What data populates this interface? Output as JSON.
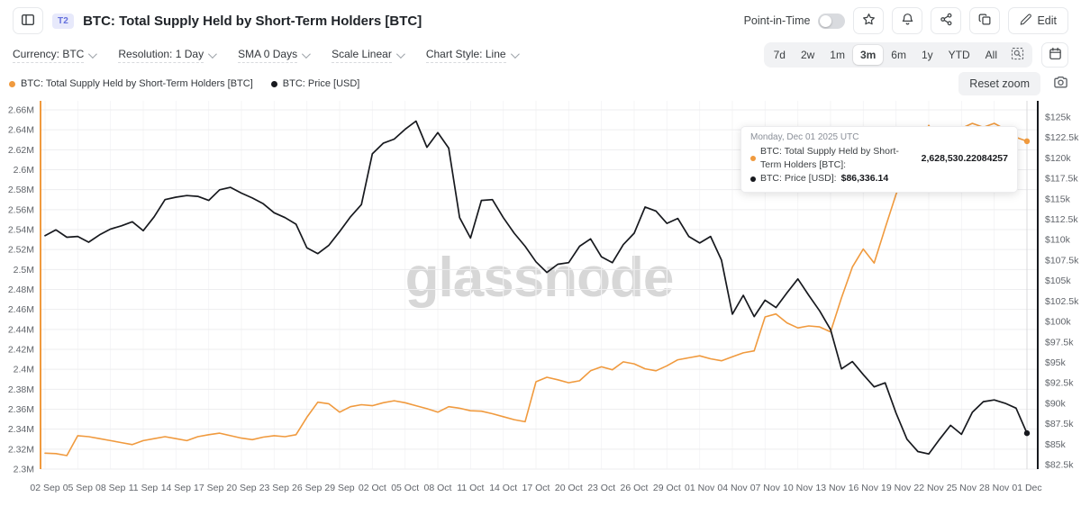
{
  "header": {
    "badge": "T2",
    "title": "BTC: Total Supply Held by Short-Term Holders [BTC]",
    "point_in_time_label": "Point-in-Time",
    "edit_label": "Edit"
  },
  "toolbar": {
    "controls": [
      {
        "label": "Currency: BTC"
      },
      {
        "label": "Resolution: 1 Day"
      },
      {
        "label": "SMA 0 Days"
      },
      {
        "label": "Scale Linear"
      },
      {
        "label": "Chart Style: Line"
      }
    ],
    "ranges": [
      "7d",
      "2w",
      "1m",
      "3m",
      "6m",
      "1y",
      "YTD",
      "All"
    ],
    "selected_range": "3m"
  },
  "legend": {
    "items": [
      {
        "label": "BTC: Total Supply Held by Short-Term Holders [BTC]",
        "color": "#f09a3e"
      },
      {
        "label": "BTC: Price [USD]",
        "color": "#17191e"
      }
    ],
    "reset_zoom_label": "Reset zoom"
  },
  "tooltip": {
    "date": "Monday, Dec 01 2025 UTC",
    "rows": [
      {
        "label": "BTC: Total Supply Held by Short-Term Holders [BTC]:",
        "value": "2,628,530.22084257",
        "color": "#f09a3e"
      },
      {
        "label": "BTC: Price [USD]:",
        "value": "$86,336.14",
        "color": "#17191e"
      }
    ]
  },
  "watermark": "glassnode",
  "chart_data": {
    "type": "line",
    "title": "BTC: Total Supply Held by Short-Term Holders [BTC]",
    "x_start_date": "2025-09-02",
    "x_end_date": "2025-12-01",
    "x_tick_labels": [
      "02 Sep",
      "05 Sep",
      "08 Sep",
      "11 Sep",
      "14 Sep",
      "17 Sep",
      "20 Sep",
      "23 Sep",
      "26 Sep",
      "29 Sep",
      "02 Oct",
      "05 Oct",
      "08 Oct",
      "11 Oct",
      "14 Oct",
      "17 Oct",
      "20 Oct",
      "23 Oct",
      "26 Oct",
      "29 Oct",
      "01 Nov",
      "04 Nov",
      "07 Nov",
      "10 Nov",
      "13 Nov",
      "16 Nov",
      "19 Nov",
      "22 Nov",
      "25 Nov",
      "28 Nov",
      "01 Dec"
    ],
    "y_left": {
      "min": 2.3,
      "max": 2.66,
      "step": 0.02,
      "unit": "M BTC",
      "tick_labels": [
        "2.66M",
        "2.64M",
        "2.62M",
        "2.6M",
        "2.58M",
        "2.56M",
        "2.54M",
        "2.52M",
        "2.5M",
        "2.48M",
        "2.46M",
        "2.44M",
        "2.42M",
        "2.4M",
        "2.38M",
        "2.36M",
        "2.34M",
        "2.32M",
        "2.3M"
      ]
    },
    "y_right": {
      "min": 82.5,
      "max": 125,
      "step": 2.5,
      "unit": "$k",
      "tick_labels": [
        "$125k",
        "$122.5k",
        "$120k",
        "$117.5k",
        "$115k",
        "$112.5k",
        "$110k",
        "$107.5k",
        "$105k",
        "$102.5k",
        "$100k",
        "$97.5k",
        "$95k",
        "$92.5k",
        "$90k",
        "$87.5k",
        "$85k",
        "$82.5k"
      ]
    },
    "series": [
      {
        "name": "BTC: Total Supply Held by Short-Term Holders [BTC]",
        "axis": "left",
        "color": "#f09a3e",
        "unit": "M BTC",
        "values": [
          2.316,
          2.3155,
          2.3135,
          2.3335,
          2.3325,
          2.3305,
          2.3285,
          2.3265,
          2.3245,
          2.3285,
          2.3305,
          2.3325,
          2.3305,
          2.3285,
          2.3325,
          2.3345,
          2.336,
          2.3335,
          2.331,
          2.3295,
          2.332,
          2.3335,
          2.3325,
          2.3345,
          2.352,
          2.367,
          2.3655,
          2.357,
          2.3625,
          2.3645,
          2.3635,
          2.3665,
          2.3685,
          2.3665,
          2.3635,
          2.3605,
          2.357,
          2.3625,
          2.361,
          2.3585,
          2.358,
          2.3555,
          2.3525,
          2.3495,
          2.3475,
          2.3875,
          2.392,
          2.3895,
          2.3865,
          2.3885,
          2.3985,
          2.4025,
          2.3995,
          2.4075,
          2.4055,
          2.4005,
          2.3985,
          2.4035,
          2.4095,
          2.4115,
          2.4135,
          2.4105,
          2.4085,
          2.4125,
          2.4165,
          2.4185,
          2.4525,
          2.4555,
          2.4465,
          2.4415,
          2.4435,
          2.4425,
          2.4375,
          2.4715,
          2.5025,
          2.5205,
          2.5065,
          2.5415,
          2.5755,
          2.6005,
          2.6225,
          2.6445,
          2.6265,
          2.6335,
          2.6415,
          2.6465,
          2.6425,
          2.6465,
          2.6405,
          2.6325,
          2.62853
        ]
      },
      {
        "name": "BTC: Price [USD]",
        "axis": "right",
        "color": "#17191e",
        "unit": "$k",
        "values": [
          110.5,
          111.2,
          110.3,
          110.4,
          109.7,
          110.6,
          111.3,
          111.7,
          112.2,
          111.1,
          112.8,
          114.9,
          115.2,
          115.4,
          115.3,
          114.8,
          116.1,
          116.4,
          115.7,
          115.1,
          114.4,
          113.3,
          112.7,
          111.9,
          109.0,
          108.3,
          109.3,
          111.0,
          112.8,
          114.3,
          120.5,
          121.8,
          122.3,
          123.5,
          124.5,
          121.3,
          123.1,
          121.2,
          112.7,
          110.2,
          114.8,
          114.9,
          112.7,
          110.8,
          109.2,
          107.3,
          106.0,
          107.0,
          107.2,
          109.2,
          110.1,
          107.9,
          107.2,
          109.4,
          110.8,
          114.0,
          113.5,
          112.0,
          112.6,
          110.4,
          109.6,
          110.4,
          107.5,
          100.9,
          103.2,
          100.6,
          102.6,
          101.7,
          103.5,
          105.2,
          103.2,
          101.3,
          99.0,
          94.2,
          95.1,
          93.5,
          92.0,
          92.5,
          88.8,
          85.6,
          84.1,
          83.8,
          85.6,
          87.3,
          86.2,
          88.9,
          90.2,
          90.4,
          90.0,
          89.4,
          86.34
        ]
      }
    ],
    "last_point": {
      "date": "Monday, Dec 01 2025 UTC",
      "supply_btc": "2,628,530.22084257",
      "price_usd": "$86,336.14"
    },
    "legend_position": "top-left",
    "grid": true
  }
}
